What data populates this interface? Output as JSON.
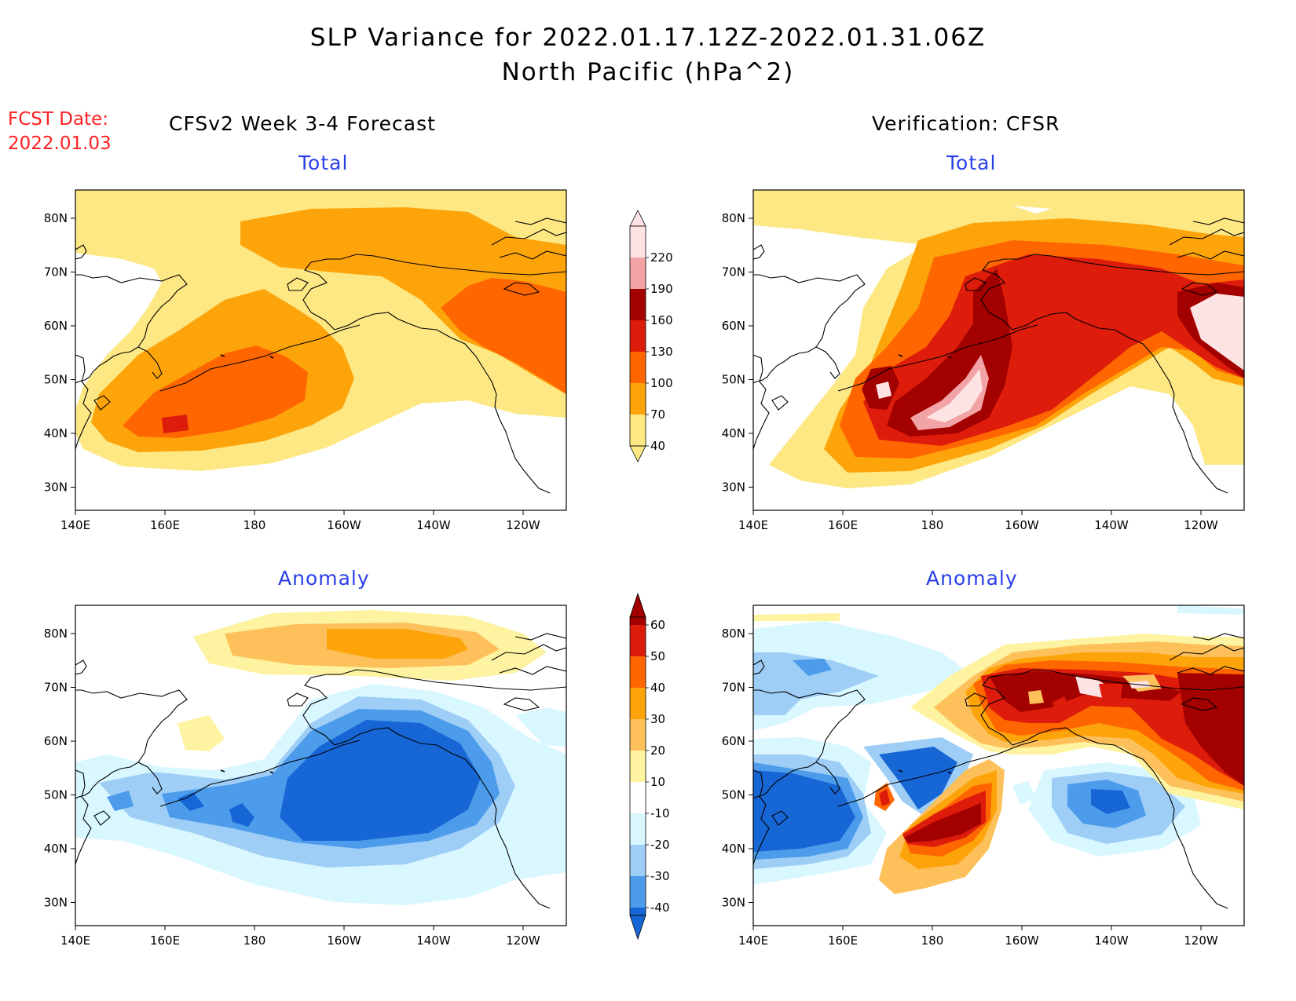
{
  "header": {
    "title_line1": "SLP Variance for 2022.01.17.12Z-2022.01.31.06Z",
    "title_line2": "North Pacific (hPa^2)",
    "fcst_label": "FCST Date:",
    "fcst_date": "2022.01.03",
    "left_column_title": "CFSv2 Week 3-4 Forecast",
    "right_column_title": "Verification: CFSR"
  },
  "panels": [
    {
      "id": "forecast-total",
      "title": "Total"
    },
    {
      "id": "verification-total",
      "title": "Total"
    },
    {
      "id": "forecast-anomaly",
      "title": "Anomaly"
    },
    {
      "id": "verification-anomaly",
      "title": "Anomaly"
    }
  ],
  "axes": {
    "lat_ticks": [
      "80N",
      "70N",
      "60N",
      "50N",
      "40N",
      "30N"
    ],
    "lon_ticks": [
      "140E",
      "160E",
      "180",
      "160W",
      "140W",
      "120W"
    ]
  },
  "total_colorbar": {
    "levels": [
      "220",
      "190",
      "160",
      "130",
      "100",
      "70",
      "40"
    ],
    "colors": [
      "#fde3e3",
      "#f2a3a6",
      "#a30000",
      "#dd1c0c",
      "#ff6600",
      "#fda40b",
      "#fde884"
    ]
  },
  "anomaly_colorbar": {
    "levels": [
      "60",
      "50",
      "40",
      "30",
      "20",
      "10",
      "-10",
      "-20",
      "-30",
      "-40"
    ],
    "colors": [
      "#a30000",
      "#dd1c0c",
      "#ff6600",
      "#fda40b",
      "#fdc05a",
      "#fdf3a0",
      "#ffffff",
      "#d9f7ff",
      "#9ecdf6",
      "#4c9ceb",
      "#1766d6"
    ]
  }
}
